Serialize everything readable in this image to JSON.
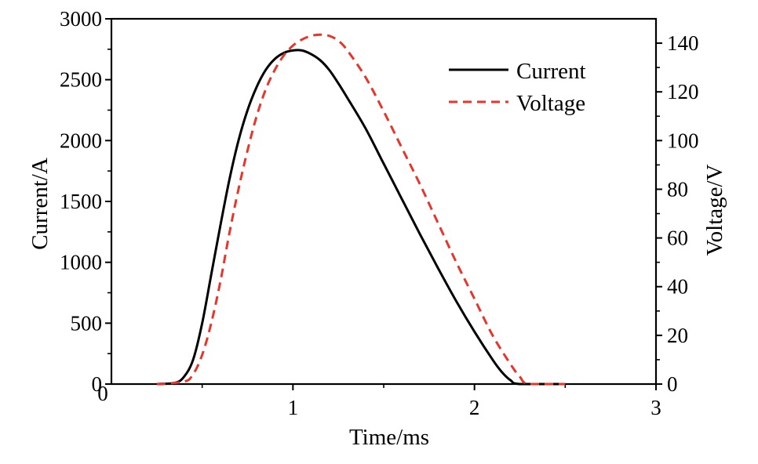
{
  "chart_data": {
    "type": "line",
    "xlabel": "Time/ms",
    "ylabel_left": "Current/A",
    "ylabel_right": "Voltage/V",
    "xlim": [
      0,
      3
    ],
    "ylim_left": [
      0,
      3000
    ],
    "ylim_right": [
      0,
      150
    ],
    "x_ticks": [
      1,
      2,
      3
    ],
    "x_tick_labels": [
      "1",
      "2",
      "3"
    ],
    "y_left_ticks": [
      0,
      500,
      1000,
      1500,
      2000,
      2500,
      3000
    ],
    "y_left_tick_labels": [
      "0",
      "500",
      "1000",
      "1500",
      "2000",
      "2500",
      "3000"
    ],
    "y_right_ticks": [
      0,
      20,
      40,
      60,
      80,
      100,
      120,
      140
    ],
    "y_right_tick_labels": [
      "0",
      "20",
      "40",
      "60",
      "80",
      "100",
      "120",
      "140"
    ],
    "origin_x_label": "0",
    "grid": false,
    "legend_position": "top-right",
    "series": [
      {
        "name": "Current",
        "axis": "left",
        "color": "#000000",
        "style": "solid",
        "x": [
          0.25,
          0.35,
          0.4,
          0.45,
          0.5,
          0.55,
          0.6,
          0.65,
          0.7,
          0.75,
          0.8,
          0.85,
          0.9,
          0.95,
          1.0,
          1.05,
          1.1,
          1.15,
          1.2,
          1.25,
          1.3,
          1.4,
          1.5,
          1.6,
          1.7,
          1.8,
          1.9,
          2.0,
          2.1,
          2.15,
          2.2,
          2.25,
          2.5
        ],
        "values": [
          0,
          10,
          60,
          200,
          500,
          900,
          1300,
          1680,
          2000,
          2250,
          2440,
          2580,
          2670,
          2720,
          2740,
          2740,
          2710,
          2660,
          2580,
          2470,
          2350,
          2100,
          1810,
          1520,
          1230,
          950,
          680,
          430,
          200,
          100,
          30,
          0,
          0
        ]
      },
      {
        "name": "Voltage",
        "axis": "right",
        "color": "#e8352b",
        "style": "dashed",
        "x": [
          0.25,
          0.4,
          0.45,
          0.5,
          0.55,
          0.6,
          0.65,
          0.7,
          0.75,
          0.8,
          0.85,
          0.9,
          0.95,
          1.0,
          1.05,
          1.1,
          1.15,
          1.2,
          1.25,
          1.3,
          1.4,
          1.5,
          1.6,
          1.7,
          1.8,
          1.9,
          2.0,
          2.1,
          2.2,
          2.25,
          2.3,
          2.5
        ],
        "values": [
          0,
          1,
          4,
          12,
          25,
          42,
          62,
          80,
          96,
          110,
          121,
          129,
          135,
          139,
          141.5,
          143,
          143.5,
          143,
          141,
          137,
          126,
          112,
          97,
          82,
          66,
          50,
          35,
          20,
          8,
          3,
          0,
          0
        ]
      }
    ]
  }
}
